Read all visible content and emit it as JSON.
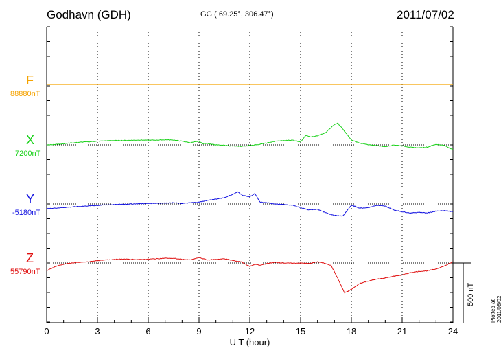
{
  "header": {
    "station": "Godhavn (GDH)",
    "coords": "GG ( 69.25°, 306.47°)",
    "date": "2011/07/02"
  },
  "plotted_note": "Plotted at 2011/08/02 00:59 UT",
  "scale_label": "500 nT",
  "chart_data": {
    "type": "line",
    "xlabel": "U T (hour)",
    "xlim": [
      0,
      24
    ],
    "xticks": [
      "0",
      "3",
      "6",
      "9",
      "12",
      "15",
      "18",
      "21",
      "24"
    ],
    "grid": true,
    "scale_bar_nT": 500,
    "series": [
      {
        "name": "F",
        "baseline_label": "88880nT",
        "baseline_nT": 88880,
        "color": "#f5a300",
        "x": [
          0,
          24
        ],
        "y": [
          88880,
          88880
        ]
      },
      {
        "name": "X",
        "baseline_label": "7200nT",
        "baseline_nT": 7200,
        "color": "#19d119",
        "x": [
          0,
          0.5,
          1,
          1.5,
          2,
          2.5,
          3,
          3.5,
          4,
          4.5,
          5,
          5.5,
          6,
          6.5,
          7,
          7.5,
          8,
          8.5,
          9,
          9.2,
          9.5,
          10,
          10.5,
          11,
          11.5,
          12,
          12.5,
          13,
          13.5,
          14,
          14.5,
          15,
          15.3,
          15.6,
          16,
          16.5,
          17,
          17.2,
          17.5,
          18,
          18.5,
          19,
          19.5,
          20,
          20.5,
          21,
          21.5,
          22,
          22.5,
          23,
          23.5,
          24
        ],
        "y": [
          7200,
          7204,
          7210,
          7216,
          7222,
          7226,
          7230,
          7234,
          7236,
          7236,
          7238,
          7240,
          7238,
          7240,
          7242,
          7240,
          7230,
          7218,
          7230,
          7210,
          7212,
          7200,
          7196,
          7190,
          7188,
          7195,
          7203,
          7215,
          7230,
          7235,
          7240,
          7225,
          7280,
          7265,
          7275,
          7305,
          7370,
          7380,
          7330,
          7240,
          7215,
          7200,
          7195,
          7185,
          7200,
          7192,
          7180,
          7175,
          7182,
          7205,
          7195,
          7160
        ]
      },
      {
        "name": "Y",
        "baseline_label": "-5180nT",
        "baseline_nT": -5180,
        "color": "#1010e0",
        "x": [
          0,
          0.5,
          1,
          1.5,
          2,
          2.5,
          3,
          3.5,
          4,
          4.5,
          5,
          5.5,
          6,
          6.5,
          7,
          7.5,
          8,
          8.5,
          9,
          9.5,
          10,
          10.5,
          11,
          11.3,
          11.6,
          12,
          12.3,
          12.6,
          13,
          13.5,
          14,
          14.5,
          15,
          15.5,
          16,
          16.5,
          17,
          17.5,
          18,
          18.5,
          19,
          19.5,
          20,
          20.5,
          21,
          21.5,
          22,
          22.5,
          23,
          23.5,
          24
        ],
        "y": [
          -5220,
          -5215,
          -5210,
          -5205,
          -5200,
          -5196,
          -5192,
          -5188,
          -5185,
          -5182,
          -5180,
          -5178,
          -5176,
          -5174,
          -5172,
          -5170,
          -5176,
          -5170,
          -5165,
          -5150,
          -5140,
          -5128,
          -5100,
          -5080,
          -5110,
          -5120,
          -5095,
          -5165,
          -5170,
          -5180,
          -5185,
          -5190,
          -5210,
          -5230,
          -5225,
          -5255,
          -5275,
          -5280,
          -5190,
          -5215,
          -5210,
          -5192,
          -5198,
          -5230,
          -5245,
          -5255,
          -5250,
          -5255,
          -5240,
          -5235,
          -5245
        ]
      },
      {
        "name": "Z",
        "baseline_label": "55790nT",
        "baseline_nT": 55790,
        "color": "#e01010",
        "x": [
          0,
          0.5,
          1,
          1.5,
          2,
          2.5,
          3,
          3.5,
          4,
          4.5,
          5,
          5.5,
          6,
          6.5,
          7,
          7.5,
          8,
          8.5,
          9,
          9.5,
          10,
          10.5,
          11,
          11.5,
          12,
          12.3,
          12.6,
          13,
          13.5,
          14,
          14.5,
          15,
          15.5,
          16,
          16.5,
          16.8,
          17.2,
          17.6,
          18,
          18.5,
          19,
          19.5,
          20,
          20.5,
          21,
          21.5,
          22,
          22.5,
          23,
          23.5,
          24
        ],
        "y": [
          55725,
          55760,
          55780,
          55790,
          55795,
          55800,
          55810,
          55815,
          55820,
          55822,
          55820,
          55818,
          55822,
          55825,
          55830,
          55828,
          55820,
          55815,
          55835,
          55815,
          55820,
          55825,
          55810,
          55800,
          55760,
          55780,
          55770,
          55785,
          55795,
          55790,
          55788,
          55790,
          55785,
          55800,
          55785,
          55770,
          55660,
          55540,
          55570,
          55620,
          55640,
          55655,
          55665,
          55680,
          55690,
          55710,
          55720,
          55725,
          55740,
          55765,
          55800
        ]
      }
    ]
  }
}
